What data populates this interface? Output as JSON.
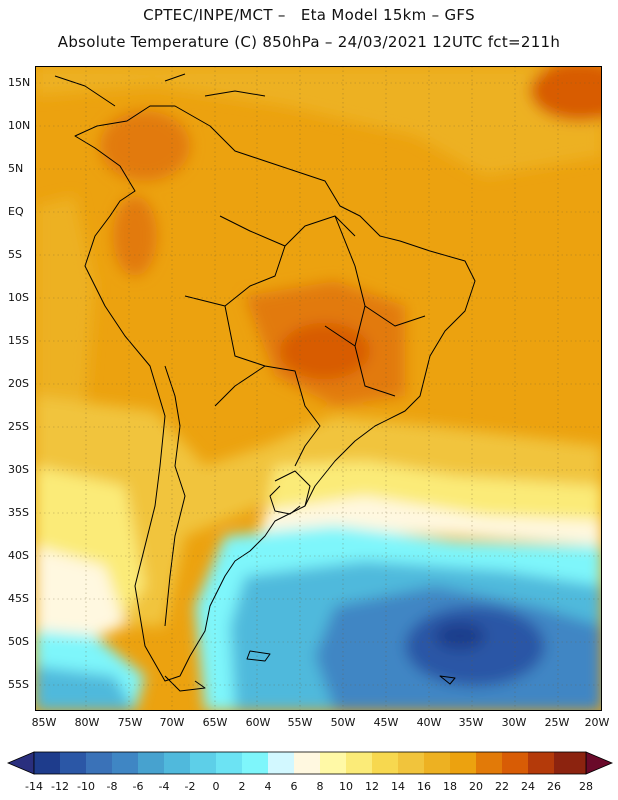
{
  "header": {
    "line1": "CPTEC/INPE/MCT –   Eta Model 15km – GFS",
    "line2": "Absolute Temperature (C) 850hPa – 24/03/2021 12UTC fct=211h"
  },
  "map": {
    "lat_labels": [
      "15N",
      "10N",
      "5N",
      "EQ",
      "5S",
      "10S",
      "15S",
      "20S",
      "25S",
      "30S",
      "35S",
      "40S",
      "45S",
      "50S",
      "55S"
    ],
    "lon_labels": [
      "85W",
      "80W",
      "75W",
      "70W",
      "65W",
      "60W",
      "55W",
      "50W",
      "45W",
      "40W",
      "35W",
      "30W",
      "25W",
      "20W"
    ]
  },
  "colorbar": {
    "labels": [
      "-14",
      "-12",
      "-10",
      "-8",
      "-6",
      "-4",
      "-2",
      "0",
      "2",
      "4",
      "6",
      "8",
      "10",
      "12",
      "14",
      "16",
      "18",
      "20",
      "22",
      "24",
      "26",
      "28"
    ],
    "colors": [
      "#1e3c8c",
      "#2b57a6",
      "#3a72b8",
      "#3f86c4",
      "#47a2cf",
      "#50b9dc",
      "#5dcfe8",
      "#6ce3f3",
      "#7ef6fb",
      "#d2f8ff",
      "#fff8e0",
      "#fff9a6",
      "#fbeb78",
      "#f7d84f",
      "#f1c43c",
      "#edb122",
      "#eca20f",
      "#e27a08",
      "#d85c05",
      "#b43a0a",
      "#8c230f",
      "#6a1414"
    ],
    "low_arrow_color": "#2a2f7e",
    "high_arrow_color": "#6a0a2a"
  }
}
